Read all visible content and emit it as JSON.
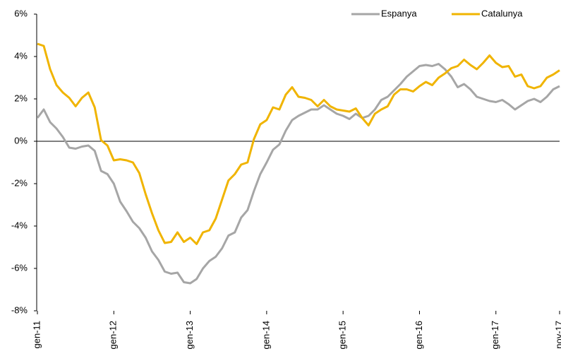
{
  "chart_data": {
    "type": "line",
    "categories": [
      "gen-11",
      null,
      null,
      null,
      null,
      null,
      null,
      null,
      null,
      null,
      null,
      null,
      "gen-12",
      null,
      null,
      null,
      null,
      null,
      null,
      null,
      null,
      null,
      null,
      null,
      "gen-13",
      null,
      null,
      null,
      null,
      null,
      null,
      null,
      null,
      null,
      null,
      null,
      "gen-14",
      null,
      null,
      null,
      null,
      null,
      null,
      null,
      null,
      null,
      null,
      null,
      "gen-15",
      null,
      null,
      null,
      null,
      null,
      null,
      null,
      null,
      null,
      null,
      null,
      "gen-16",
      null,
      null,
      null,
      null,
      null,
      null,
      null,
      null,
      null,
      null,
      null,
      "gen-17",
      null,
      null,
      null,
      null,
      null,
      null,
      null,
      null,
      null,
      "nov-17"
    ],
    "series": [
      {
        "name": "Espanya",
        "color": "#a6a6a6",
        "values": [
          1.1,
          1.5,
          0.9,
          0.6,
          0.2,
          -0.3,
          -0.35,
          -0.25,
          -0.2,
          -0.45,
          -1.4,
          -1.55,
          -2.0,
          -2.85,
          -3.3,
          -3.8,
          -4.1,
          -4.55,
          -5.2,
          -5.6,
          -6.15,
          -6.25,
          -6.2,
          -6.65,
          -6.7,
          -6.5,
          -6.0,
          -5.65,
          -5.45,
          -5.05,
          -4.45,
          -4.3,
          -3.6,
          -3.25,
          -2.35,
          -1.55,
          -1.0,
          -0.4,
          -0.15,
          0.5,
          1.0,
          1.2,
          1.35,
          1.5,
          1.5,
          1.7,
          1.5,
          1.3,
          1.2,
          1.05,
          1.3,
          1.1,
          1.2,
          1.5,
          1.95,
          2.1,
          2.4,
          2.7,
          3.05,
          3.3,
          3.55,
          3.6,
          3.55,
          3.65,
          3.4,
          3.05,
          2.55,
          2.7,
          2.45,
          2.1,
          2.0,
          1.9,
          1.85,
          1.95,
          1.75,
          1.5,
          1.7,
          1.9,
          2.0,
          1.85,
          2.1,
          2.45,
          2.6
        ]
      },
      {
        "name": "Catalunya",
        "color": "#f0b400",
        "values": [
          4.6,
          4.5,
          3.4,
          2.65,
          2.3,
          2.05,
          1.65,
          2.05,
          2.3,
          1.6,
          0.05,
          -0.2,
          -0.9,
          -0.85,
          -0.9,
          -1.0,
          -1.5,
          -2.5,
          -3.4,
          -4.2,
          -4.8,
          -4.75,
          -4.3,
          -4.75,
          -4.55,
          -4.85,
          -4.3,
          -4.2,
          -3.65,
          -2.75,
          -1.85,
          -1.55,
          -1.1,
          -1.0,
          0.1,
          0.8,
          1.0,
          1.6,
          1.5,
          2.2,
          2.55,
          2.1,
          2.05,
          1.95,
          1.65,
          1.95,
          1.65,
          1.5,
          1.45,
          1.4,
          1.55,
          1.1,
          0.75,
          1.3,
          1.5,
          1.65,
          2.2,
          2.45,
          2.45,
          2.35,
          2.6,
          2.8,
          2.65,
          3.0,
          3.2,
          3.45,
          3.55,
          3.85,
          3.6,
          3.4,
          3.7,
          4.05,
          3.7,
          3.5,
          3.55,
          3.05,
          3.15,
          2.6,
          2.5,
          2.6,
          3.0,
          3.15,
          3.35
        ]
      }
    ],
    "ylim": [
      -8,
      6
    ],
    "yticks": [
      {
        "value": -8,
        "label": "-8%"
      },
      {
        "value": -6,
        "label": "-6%"
      },
      {
        "value": -4,
        "label": "-4%"
      },
      {
        "value": -2,
        "label": "-2%"
      },
      {
        "value": 0,
        "label": "0%"
      },
      {
        "value": 2,
        "label": "2%"
      },
      {
        "value": 4,
        "label": "4%"
      },
      {
        "value": 6,
        "label": "6%"
      }
    ],
    "legend": "top-right"
  }
}
